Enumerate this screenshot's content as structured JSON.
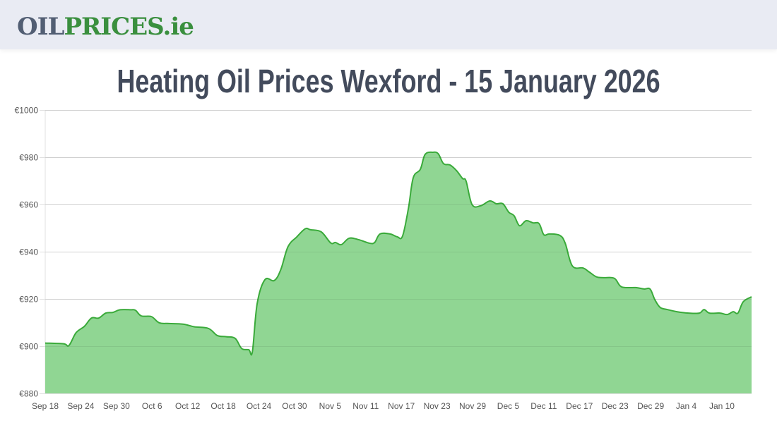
{
  "header": {
    "logo_part1": "OIL",
    "logo_part2": "PRICES.ie"
  },
  "page": {
    "title": "Heating Oil Prices Wexford - 15 January 2026"
  },
  "colors": {
    "header_bg": "#e9ebf3",
    "logo_gray": "#525e73",
    "logo_green": "#3a8f3e",
    "title": "#434b5c",
    "line": "#3aaa3a",
    "fill": "#90d693",
    "grid": "#e0e0e0"
  },
  "chart_data": {
    "type": "area",
    "title": "Heating Oil Prices Wexford - 15 January 2026",
    "xlabel": "",
    "ylabel": "",
    "currency": "€",
    "ylim": [
      880,
      1000
    ],
    "yticks": [
      1000,
      980,
      960,
      940,
      920,
      900,
      880
    ],
    "ytick_labels": [
      "€1000",
      "€980",
      "€960",
      "€940",
      "€920",
      "€900",
      "€880"
    ],
    "x_start": "Sep 18",
    "x_end": "Jan 15",
    "x_days": 119,
    "xtick_labels": [
      "Sep 18",
      "Sep 24",
      "Sep 30",
      "Oct 6",
      "Oct 12",
      "Oct 18",
      "Oct 24",
      "Oct 30",
      "Nov 5",
      "Nov 11",
      "Nov 17",
      "Nov 23",
      "Nov 29",
      "Dec 5",
      "Dec 11",
      "Dec 17",
      "Dec 23",
      "Dec 29",
      "Jan 4",
      "Jan 10"
    ],
    "xtick_days": [
      0,
      6,
      12,
      18,
      24,
      30,
      36,
      42,
      48,
      54,
      60,
      66,
      72,
      78,
      84,
      90,
      96,
      102,
      108,
      114
    ],
    "grid": true,
    "legend": null,
    "series": [
      {
        "name": "Heating Oil Price",
        "points": [
          [
            0,
            901.3
          ],
          [
            3.1,
            901.0
          ],
          [
            4.0,
            900.3
          ],
          [
            5.2,
            905.7
          ],
          [
            6.6,
            908.4
          ],
          [
            7.8,
            911.9
          ],
          [
            9.0,
            911.9
          ],
          [
            10.2,
            914.0
          ],
          [
            11.4,
            914.3
          ],
          [
            12.6,
            915.4
          ],
          [
            14.4,
            915.4
          ],
          [
            15.2,
            915.2
          ],
          [
            16.2,
            912.8
          ],
          [
            17.9,
            912.5
          ],
          [
            19.2,
            909.9
          ],
          [
            20.9,
            909.6
          ],
          [
            23.3,
            909.3
          ],
          [
            25.1,
            908.2
          ],
          [
            27.5,
            907.5
          ],
          [
            29.0,
            904.5
          ],
          [
            30.5,
            904.0
          ],
          [
            32.0,
            903.3
          ],
          [
            33.1,
            899.0
          ],
          [
            34.3,
            898.5
          ],
          [
            34.9,
            897.6
          ],
          [
            35.7,
            917.9
          ],
          [
            37.0,
            928.1
          ],
          [
            38.6,
            927.8
          ],
          [
            39.7,
            932.5
          ],
          [
            40.9,
            942.1
          ],
          [
            42.4,
            946.3
          ],
          [
            43.8,
            949.7
          ],
          [
            44.7,
            949.3
          ],
          [
            46.5,
            948.4
          ],
          [
            48.1,
            943.7
          ],
          [
            48.9,
            943.9
          ],
          [
            49.9,
            943.0
          ],
          [
            51.2,
            945.7
          ],
          [
            52.8,
            945.1
          ],
          [
            54.6,
            943.6
          ],
          [
            55.5,
            943.9
          ],
          [
            56.4,
            947.5
          ],
          [
            58.1,
            947.5
          ],
          [
            59.3,
            946.3
          ],
          [
            60.2,
            946.6
          ],
          [
            61.2,
            958.5
          ],
          [
            62.0,
            971.3
          ],
          [
            63.2,
            974.9
          ],
          [
            64.0,
            981.2
          ],
          [
            65.3,
            982.1
          ],
          [
            66.2,
            981.5
          ],
          [
            67.1,
            977.3
          ],
          [
            68.2,
            976.7
          ],
          [
            69.3,
            974.3
          ],
          [
            70.3,
            971.0
          ],
          [
            70.9,
            969.9
          ],
          [
            71.9,
            960.0
          ],
          [
            73.3,
            959.4
          ],
          [
            74.9,
            961.5
          ],
          [
            76.0,
            960.3
          ],
          [
            77.1,
            960.3
          ],
          [
            78.1,
            956.7
          ],
          [
            79.0,
            955.2
          ],
          [
            79.9,
            951.0
          ],
          [
            81.0,
            953.1
          ],
          [
            82.2,
            952.2
          ],
          [
            83.2,
            951.9
          ],
          [
            84.0,
            947.2
          ],
          [
            84.9,
            947.5
          ],
          [
            86.7,
            946.9
          ],
          [
            87.6,
            943.6
          ],
          [
            88.8,
            934.0
          ],
          [
            90.6,
            933.1
          ],
          [
            91.7,
            931.3
          ],
          [
            92.9,
            929.3
          ],
          [
            94.1,
            929.0
          ],
          [
            95.9,
            928.7
          ],
          [
            97.1,
            925.1
          ],
          [
            99.5,
            924.8
          ],
          [
            100.9,
            924.2
          ],
          [
            101.9,
            924.2
          ],
          [
            102.7,
            919.7
          ],
          [
            103.6,
            916.4
          ],
          [
            104.8,
            915.5
          ],
          [
            106.4,
            914.6
          ],
          [
            108.4,
            914.0
          ],
          [
            110.2,
            914.0
          ],
          [
            111.0,
            915.5
          ],
          [
            111.9,
            914.0
          ],
          [
            113.7,
            914.0
          ],
          [
            114.9,
            913.4
          ],
          [
            115.9,
            914.6
          ],
          [
            116.7,
            914.0
          ],
          [
            117.6,
            918.8
          ],
          [
            119.0,
            920.9
          ]
        ]
      }
    ],
    "summary": {
      "start_price": 901.3,
      "min_price": 897.6,
      "min_date": "Oct 23",
      "max_price": 982.1,
      "max_date": "Nov 22",
      "end_price": 920.9
    }
  }
}
